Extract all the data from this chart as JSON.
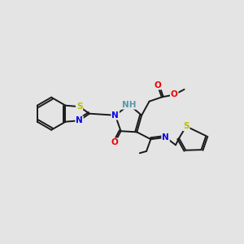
{
  "bg_color": "#e4e4e4",
  "bond_color": "#1a1a1a",
  "atom_colors": {
    "N": "#0000ee",
    "O": "#ee0000",
    "S": "#bbbb00",
    "NH": "#5599aa",
    "C": "#1a1a1a"
  },
  "lw": 1.4,
  "fs": 7.5
}
